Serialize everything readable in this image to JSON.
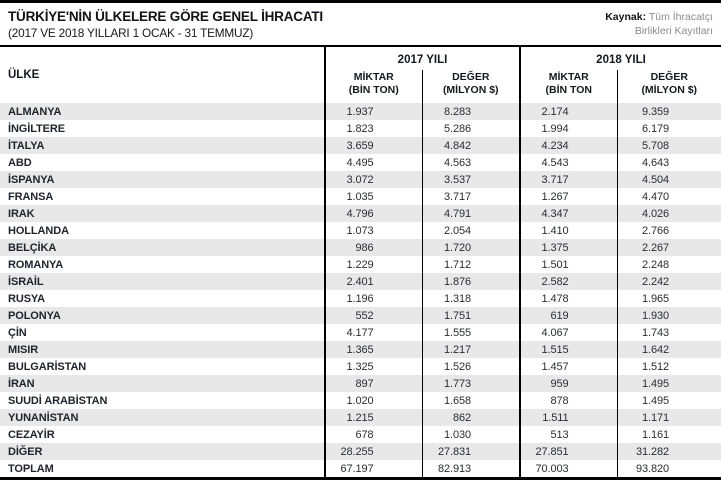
{
  "header": {
    "title": "TÜRKİYE'NİN ÜLKELERE GÖRE GENEL İHRACATI",
    "subtitle": "(2017 VE 2018 YILLARI 1 OCAK - 31 TEMMUZ)",
    "source": {
      "label": "Kaynak:",
      "line1": "Tüm İhracatçı",
      "line2": "Birlikleri Kayıtları"
    }
  },
  "table": {
    "country_header": "ÜLKE",
    "groups": [
      {
        "label": "2017 YILI",
        "cols": [
          {
            "l1": "MİKTAR",
            "l2": "(BİN TON)"
          },
          {
            "l1": "DEĞER",
            "l2": "(MİLYON $)"
          }
        ]
      },
      {
        "label": "2018 YILI",
        "cols": [
          {
            "l1": "MİKTAR",
            "l2": "(BİN TON"
          },
          {
            "l1": "DEĞER",
            "l2": "(MİLYON $)"
          }
        ]
      }
    ],
    "rows": [
      {
        "country": "ALMANYA",
        "values": [
          "1.937",
          "8.283",
          "2.174",
          "9.359"
        ]
      },
      {
        "country": "İNGİLTERE",
        "values": [
          "1.823",
          "5.286",
          "1.994",
          "6.179"
        ]
      },
      {
        "country": "İTALYA",
        "values": [
          "3.659",
          "4.842",
          "4.234",
          "5.708"
        ]
      },
      {
        "country": "ABD",
        "values": [
          "4.495",
          "4.563",
          "4.543",
          "4.643"
        ]
      },
      {
        "country": "İSPANYA",
        "values": [
          "3.072",
          "3.537",
          "3.717",
          "4.504"
        ]
      },
      {
        "country": "FRANSA",
        "values": [
          "1.035",
          "3.717",
          "1.267",
          "4.470"
        ]
      },
      {
        "country": "IRAK",
        "values": [
          "4.796",
          "4.791",
          "4.347",
          "4.026"
        ]
      },
      {
        "country": "HOLLANDA",
        "values": [
          "1.073",
          "2.054",
          "1.410",
          "2.766"
        ]
      },
      {
        "country": "BELÇİKA",
        "values": [
          "986",
          "1.720",
          "1.375",
          "2.267"
        ]
      },
      {
        "country": "ROMANYA",
        "values": [
          "1.229",
          "1.712",
          "1.501",
          "2.248"
        ]
      },
      {
        "country": "İSRAİL",
        "values": [
          "2.401",
          "1.876",
          "2.582",
          "2.242"
        ]
      },
      {
        "country": "RUSYA",
        "values": [
          "1.196",
          "1.318",
          "1.478",
          "1.965"
        ]
      },
      {
        "country": "POLONYA",
        "values": [
          "552",
          "1.751",
          "619",
          "1.930"
        ]
      },
      {
        "country": "ÇİN",
        "values": [
          "4.177",
          "1.555",
          "4.067",
          "1.743"
        ]
      },
      {
        "country": "MISIR",
        "values": [
          "1.365",
          "1.217",
          "1.515",
          "1.642"
        ]
      },
      {
        "country": "BULGARİSTAN",
        "values": [
          "1.325",
          "1.526",
          "1.457",
          "1.512"
        ]
      },
      {
        "country": "İRAN",
        "values": [
          "897",
          "1.773",
          "959",
          "1.495"
        ]
      },
      {
        "country": "SUUDİ ARABİSTAN",
        "values": [
          "1.020",
          "1.658",
          "878",
          "1.495"
        ]
      },
      {
        "country": "YUNANİSTAN",
        "values": [
          "1.215",
          "862",
          "1.511",
          "1.171"
        ]
      },
      {
        "country": "CEZAYİR",
        "values": [
          "678",
          "1.030",
          "513",
          "1.161"
        ]
      },
      {
        "country": "DİĞER",
        "values": [
          "28.255",
          "27.831",
          "27.851",
          "31.282"
        ]
      },
      {
        "country": "TOPLAM",
        "values": [
          "67.197",
          "82.913",
          "70.003",
          "93.820"
        ]
      }
    ]
  },
  "colors": {
    "stripe": "#e8e8e8",
    "border": "#000000",
    "country_text": "#21242e",
    "source_text": "#8a8a8a"
  },
  "chart_data": {
    "type": "table",
    "title": "TÜRKİYE'NİN ÜLKELERE GÖRE GENEL İHRACATI",
    "subtitle": "(2017 VE 2018 YILLARI 1 OCAK - 31 TEMMUZ)",
    "source": "Kaynak: Tüm İhracatçı Birlikleri Kayıtları",
    "columns": [
      "ÜLKE",
      "2017 MİKTAR (BİN TON)",
      "2017 DEĞER (MİLYON $)",
      "2018 MİKTAR (BİN TON)",
      "2018 DEĞER (MİLYON $)"
    ],
    "rows": [
      [
        "ALMANYA",
        1937,
        8283,
        2174,
        9359
      ],
      [
        "İNGİLTERE",
        1823,
        5286,
        1994,
        6179
      ],
      [
        "İTALYA",
        3659,
        4842,
        4234,
        5708
      ],
      [
        "ABD",
        4495,
        4563,
        4543,
        4643
      ],
      [
        "İSPANYA",
        3072,
        3537,
        3717,
        4504
      ],
      [
        "FRANSA",
        1035,
        3717,
        1267,
        4470
      ],
      [
        "IRAK",
        4796,
        4791,
        4347,
        4026
      ],
      [
        "HOLLANDA",
        1073,
        2054,
        1410,
        2766
      ],
      [
        "BELÇİKA",
        986,
        1720,
        1375,
        2267
      ],
      [
        "ROMANYA",
        1229,
        1712,
        1501,
        2248
      ],
      [
        "İSRAİL",
        2401,
        1876,
        2582,
        2242
      ],
      [
        "RUSYA",
        1196,
        1318,
        1478,
        1965
      ],
      [
        "POLONYA",
        552,
        1751,
        619,
        1930
      ],
      [
        "ÇİN",
        4177,
        1555,
        4067,
        1743
      ],
      [
        "MISIR",
        1365,
        1217,
        1515,
        1642
      ],
      [
        "BULGARİSTAN",
        1325,
        1526,
        1457,
        1512
      ],
      [
        "İRAN",
        897,
        1773,
        959,
        1495
      ],
      [
        "SUUDİ ARABİSTAN",
        1020,
        1658,
        878,
        1495
      ],
      [
        "YUNANİSTAN",
        1215,
        862,
        1511,
        1171
      ],
      [
        "CEZAYİR",
        678,
        1030,
        513,
        1161
      ],
      [
        "DİĞER",
        28255,
        27831,
        27851,
        31282
      ],
      [
        "TOPLAM",
        67197,
        82913,
        70003,
        93820
      ]
    ]
  }
}
